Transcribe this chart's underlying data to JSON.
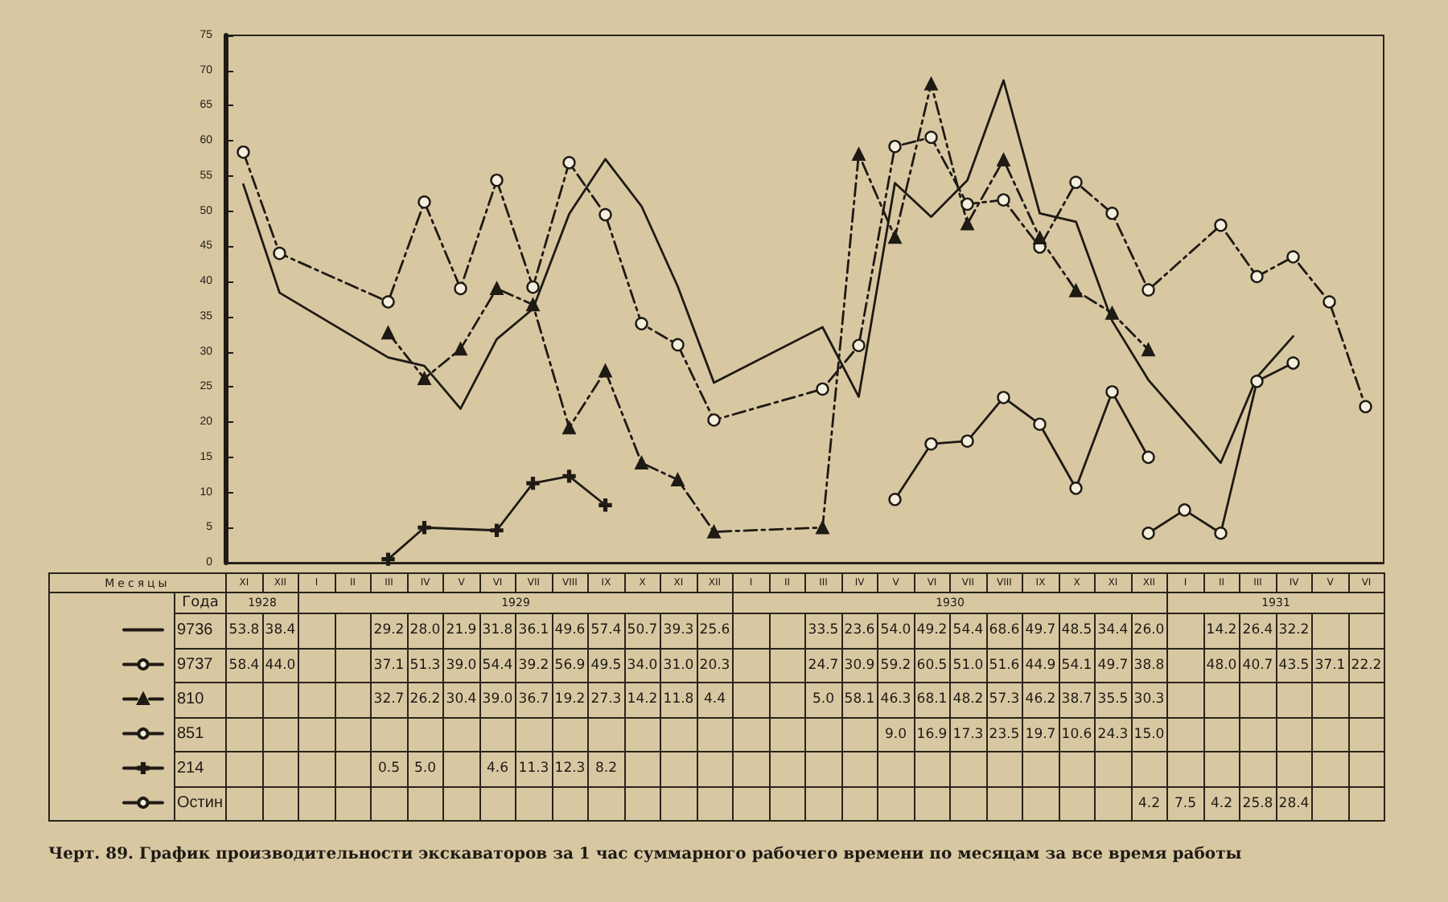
{
  "chart_data": {
    "type": "line",
    "title": "Черт. 89. График производительности экскаваторов за 1 час суммарного рабочего времени по месяцам за все время работы",
    "categories": [
      "XI",
      "XII",
      "I",
      "II",
      "III",
      "IV",
      "V",
      "VI",
      "VII",
      "VIII",
      "IX",
      "X",
      "XI",
      "XII",
      "I",
      "II",
      "III",
      "IV",
      "V",
      "VI",
      "VII",
      "VIII",
      "IX",
      "X",
      "XI",
      "XII",
      "I",
      "II",
      "III",
      "IV",
      "V",
      "VI"
    ],
    "annotations": [
      "Месяцы",
      "Года",
      "1928",
      "1929",
      "1930",
      "1931"
    ],
    "ylim": [
      0,
      75
    ],
    "yticks": [
      0,
      5,
      10,
      15,
      20,
      25,
      30,
      35,
      40,
      45,
      50,
      55,
      60,
      65,
      70,
      75
    ],
    "grid": false,
    "legend": "bottom left",
    "series": [
      {
        "name": "9736",
        "color": "#1e1a14",
        "line_style": "solid",
        "marker": "none",
        "values": [
          53.8,
          38.4,
          null,
          null,
          29.2,
          28.0,
          21.9,
          31.8,
          36.1,
          49.6,
          57.4,
          50.7,
          39.3,
          25.6,
          null,
          null,
          33.5,
          23.6,
          54.0,
          49.2,
          54.4,
          68.6,
          49.7,
          48.5,
          34.4,
          26.0,
          null,
          14.2,
          26.4,
          32.2,
          null,
          null
        ],
        "value_labels": [
          "53.8",
          "38.4",
          null,
          null,
          "29.2",
          "28.0",
          "21.9",
          "31.8",
          "36.1",
          "49.6",
          "57.4",
          "50.7",
          "39.3",
          "25.6",
          null,
          null,
          "33.5",
          "23.6",
          "54.0",
          "49.2",
          "54.4",
          "68.6",
          "49.7",
          "48.5",
          "34.4",
          "26.0",
          null,
          "14.2",
          "26.4",
          "32.2",
          null,
          null
        ]
      },
      {
        "name": "9737",
        "color": "#1e1a14",
        "line_style": "dashed",
        "marker": "circle",
        "values": [
          58.4,
          44.0,
          null,
          null,
          37.1,
          51.3,
          39.0,
          54.4,
          39.2,
          56.9,
          49.5,
          34.0,
          31.0,
          20.3,
          null,
          null,
          24.7,
          30.9,
          59.2,
          60.5,
          51.0,
          51.6,
          44.9,
          54.1,
          49.7,
          38.8,
          null,
          48.0,
          40.7,
          43.5,
          37.1,
          22.2
        ],
        "value_labels": [
          "58.4",
          "44.0",
          null,
          null,
          "37.1",
          "51.3",
          "39.0",
          "54.4",
          "39.2",
          "56.9",
          "49.5",
          "34.0",
          "31.0",
          "20.3",
          null,
          null,
          "24.7",
          "30.9",
          "59.2",
          "60.5",
          "51.0",
          "51.6",
          "44.9",
          "54.1",
          "49.7",
          "38.8",
          null,
          "48.0",
          "40.7",
          "43.5",
          "37.1",
          "22.2"
        ]
      },
      {
        "name": "810",
        "color": "#1e1a14",
        "line_style": "dashed",
        "marker": "triangle",
        "values": [
          null,
          null,
          null,
          null,
          32.7,
          26.2,
          30.4,
          39.0,
          36.7,
          19.2,
          27.3,
          14.2,
          11.8,
          4.4,
          null,
          null,
          5.0,
          58.1,
          46.3,
          68.1,
          48.2,
          57.3,
          46.2,
          38.7,
          35.5,
          30.3,
          null,
          null,
          null,
          null,
          null,
          null
        ],
        "value_labels": [
          null,
          null,
          null,
          null,
          "32.7",
          "26.2",
          "30.4",
          "39.0",
          "36.7",
          "19.2",
          "27.3",
          "14.2",
          "11.8",
          "4.4",
          null,
          null,
          "5.0",
          "58.1",
          "46.3",
          "68.1",
          "48.2",
          "57.3",
          "46.2",
          "38.7",
          "35.5",
          "30.3",
          null,
          null,
          null,
          null,
          null,
          null
        ]
      },
      {
        "name": "851",
        "color": "#1e1a14",
        "line_style": "solid",
        "marker": "circle",
        "values": [
          null,
          null,
          null,
          null,
          null,
          null,
          null,
          null,
          null,
          null,
          null,
          null,
          null,
          null,
          null,
          null,
          null,
          null,
          9.0,
          16.9,
          17.3,
          23.5,
          19.7,
          10.6,
          24.3,
          15.0,
          null,
          null,
          null,
          null,
          null,
          null
        ],
        "value_labels": [
          null,
          null,
          null,
          null,
          null,
          null,
          null,
          null,
          null,
          null,
          null,
          null,
          null,
          null,
          null,
          null,
          null,
          null,
          "9.0",
          "16.9",
          "17.3",
          "23.5",
          "19.7",
          "10.6",
          "24.3",
          "15.0",
          null,
          null,
          null,
          null,
          null,
          null
        ]
      },
      {
        "name": "214",
        "color": "#1e1a14",
        "line_style": "solid",
        "marker": "cross",
        "values": [
          null,
          null,
          null,
          null,
          0.5,
          5.0,
          null,
          4.6,
          11.3,
          12.3,
          8.2,
          null,
          null,
          null,
          null,
          null,
          null,
          null,
          null,
          null,
          null,
          null,
          null,
          null,
          null,
          null,
          null,
          null,
          null,
          null,
          null,
          null
        ],
        "value_labels": [
          null,
          null,
          null,
          null,
          "0.5",
          "5.0",
          null,
          "4.6",
          "11.3",
          "12.3",
          "8.2",
          null,
          null,
          null,
          null,
          null,
          null,
          null,
          null,
          null,
          null,
          null,
          null,
          null,
          null,
          null,
          null,
          null,
          null,
          null,
          null,
          null
        ]
      },
      {
        "name": "Остин",
        "color": "#1e1a14",
        "line_style": "solid",
        "marker": "circle",
        "values": [
          null,
          null,
          null,
          null,
          null,
          null,
          null,
          null,
          null,
          null,
          null,
          null,
          null,
          null,
          null,
          null,
          null,
          null,
          null,
          null,
          null,
          null,
          null,
          null,
          null,
          4.2,
          7.5,
          4.2,
          25.8,
          28.4,
          null,
          null
        ],
        "value_labels": [
          null,
          null,
          null,
          null,
          null,
          null,
          null,
          null,
          null,
          null,
          null,
          null,
          null,
          null,
          null,
          null,
          null,
          null,
          null,
          null,
          null,
          null,
          null,
          null,
          null,
          "4.2",
          "7.5",
          "4.2",
          "25.8",
          "28.4",
          null,
          null
        ]
      }
    ]
  }
}
